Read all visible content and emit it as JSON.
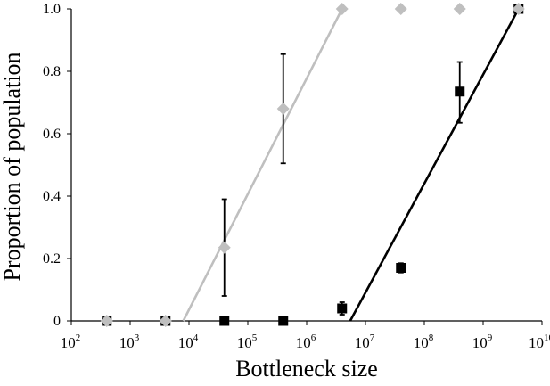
{
  "chart_data": {
    "type": "scatter",
    "title": "",
    "xlabel": "Bottleneck size",
    "ylabel": "Proportion of population",
    "x_scale": "log",
    "xlim": [
      100,
      10000000000
    ],
    "ylim": [
      0,
      1.0
    ],
    "grid": false,
    "legend": "none",
    "x_tick_labels": [
      {
        "base": "10",
        "exp": "2",
        "value": 100
      },
      {
        "base": "10",
        "exp": "3",
        "value": 1000
      },
      {
        "base": "10",
        "exp": "4",
        "value": 10000
      },
      {
        "base": "10",
        "exp": "5",
        "value": 100000
      },
      {
        "base": "10",
        "exp": "6",
        "value": 1000000
      },
      {
        "base": "10",
        "exp": "7",
        "value": 10000000
      },
      {
        "base": "10",
        "exp": "8",
        "value": 100000000
      },
      {
        "base": "10",
        "exp": "9",
        "value": 1000000000
      },
      {
        "base": "10",
        "exp": "10",
        "value": 10000000000
      }
    ],
    "y_tick_labels": [
      {
        "label": "0",
        "value": 0
      },
      {
        "label": "0.2",
        "value": 0.2
      },
      {
        "label": "0.4",
        "value": 0.4
      },
      {
        "label": "0.6",
        "value": 0.6
      },
      {
        "label": "0.8",
        "value": 0.8
      },
      {
        "label": "1.0",
        "value": 1.0
      }
    ],
    "series": [
      {
        "marker": "diamond",
        "color": "#bfbfbf",
        "points": [
          {
            "x": 400,
            "y": 0
          },
          {
            "x": 4000,
            "y": 0
          },
          {
            "x": 40000,
            "y": 0.235,
            "err_low": 0.08,
            "err_high": 0.39
          },
          {
            "x": 400000,
            "y": 0.68,
            "err_low": 0.505,
            "err_high": 0.855
          },
          {
            "x": 4000000,
            "y": 1.0
          },
          {
            "x": 40000000,
            "y": 1.0
          },
          {
            "x": 400000000,
            "y": 1.0
          },
          {
            "x": 4000000000,
            "y": 1.0
          }
        ],
        "trendline": {
          "x": [
            8000,
            4000000
          ],
          "y": [
            0,
            1.0
          ]
        }
      },
      {
        "marker": "square",
        "color": "#000000",
        "points": [
          {
            "x": 400,
            "y": 0
          },
          {
            "x": 4000,
            "y": 0
          },
          {
            "x": 40000,
            "y": 0
          },
          {
            "x": 400000,
            "y": 0
          },
          {
            "x": 4000000,
            "y": 0.04,
            "err_low": 0.02,
            "err_high": 0.06
          },
          {
            "x": 40000000,
            "y": 0.17,
            "err_low": 0.155,
            "err_high": 0.185
          },
          {
            "x": 400000000,
            "y": 0.735,
            "err_low": 0.635,
            "err_high": 0.83
          },
          {
            "x": 4000000000,
            "y": 1.0
          }
        ],
        "trendline": {
          "x": [
            5500000,
            4000000000
          ],
          "y": [
            0,
            1.0
          ]
        }
      }
    ]
  }
}
